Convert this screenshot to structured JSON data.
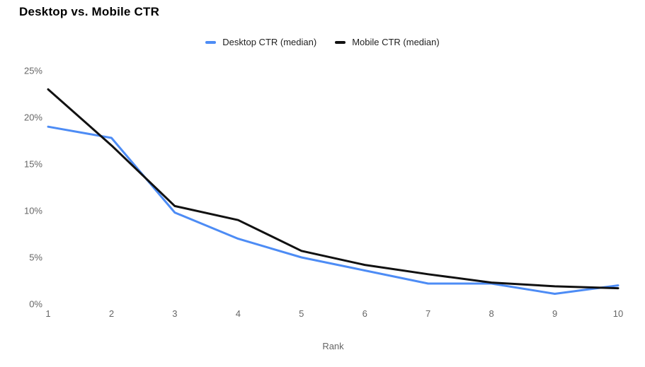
{
  "page": {
    "background": "#ffffff"
  },
  "chart_data": {
    "type": "line",
    "title": "Desktop vs. Mobile CTR",
    "xlabel": "Rank",
    "ylabel": "",
    "categories": [
      "1",
      "2",
      "3",
      "4",
      "5",
      "6",
      "7",
      "8",
      "9",
      "10"
    ],
    "series": [
      {
        "name": "Desktop CTR (median)",
        "color": "#4d8cf5",
        "values": [
          19.0,
          17.8,
          9.8,
          7.0,
          5.0,
          3.6,
          2.2,
          2.2,
          1.1,
          2.0
        ]
      },
      {
        "name": "Mobile CTR (median)",
        "color": "#111111",
        "values": [
          23.0,
          17.0,
          10.5,
          9.0,
          5.7,
          4.2,
          3.2,
          2.3,
          1.9,
          1.7
        ]
      }
    ],
    "ylim": [
      0,
      25
    ],
    "y_ticks": [
      {
        "value": 0,
        "label": "0%"
      },
      {
        "value": 5,
        "label": "5%"
      },
      {
        "value": 10,
        "label": "10%"
      },
      {
        "value": 15,
        "label": "15%"
      },
      {
        "value": 20,
        "label": "20%"
      },
      {
        "value": 25,
        "label": "25%"
      }
    ],
    "grid": "off",
    "axis_lines": "none",
    "legend_position": "top",
    "text_colors": {
      "title": "#000000",
      "legend": "#1f1f1f",
      "ticks": "#666666",
      "axis_title": "#666666"
    }
  }
}
